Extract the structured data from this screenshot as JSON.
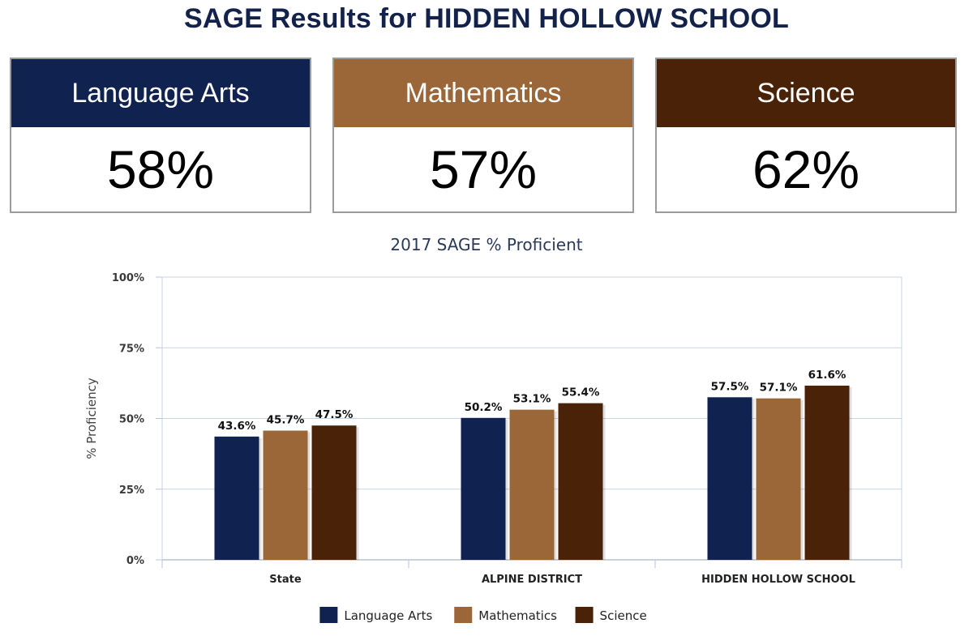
{
  "page": {
    "title": "SAGE Results for HIDDEN HOLLOW SCHOOL"
  },
  "cards": [
    {
      "label": "Language Arts",
      "value": "58%",
      "color": "#0f2250"
    },
    {
      "label": "Mathematics",
      "value": "57%",
      "color": "#9b6738"
    },
    {
      "label": "Science",
      "value": "62%",
      "color": "#4a2207"
    }
  ],
  "chart_data": {
    "type": "bar",
    "title": "2017 SAGE % Proficient",
    "ylabel": "% Proficiency",
    "xlabel": "",
    "ylim": [
      0,
      100
    ],
    "yticks": [
      0,
      25,
      50,
      75,
      100
    ],
    "ytick_labels": [
      "0%",
      "25%",
      "50%",
      "75%",
      "100%"
    ],
    "grid": true,
    "legend_position": "bottom",
    "categories": [
      "State",
      "ALPINE DISTRICT",
      "HIDDEN HOLLOW SCHOOL"
    ],
    "series": [
      {
        "name": "Language Arts",
        "color": "#0f2250",
        "values": [
          43.6,
          50.2,
          57.5
        ],
        "labels": [
          "43.6%",
          "50.2%",
          "57.5%"
        ]
      },
      {
        "name": "Mathematics",
        "color": "#9b6738",
        "values": [
          45.7,
          53.1,
          57.1
        ],
        "labels": [
          "45.7%",
          "53.1%",
          "57.1%"
        ]
      },
      {
        "name": "Science",
        "color": "#4a2207",
        "values": [
          47.5,
          55.4,
          61.6
        ],
        "labels": [
          "47.5%",
          "55.4%",
          "61.6%"
        ]
      }
    ]
  }
}
